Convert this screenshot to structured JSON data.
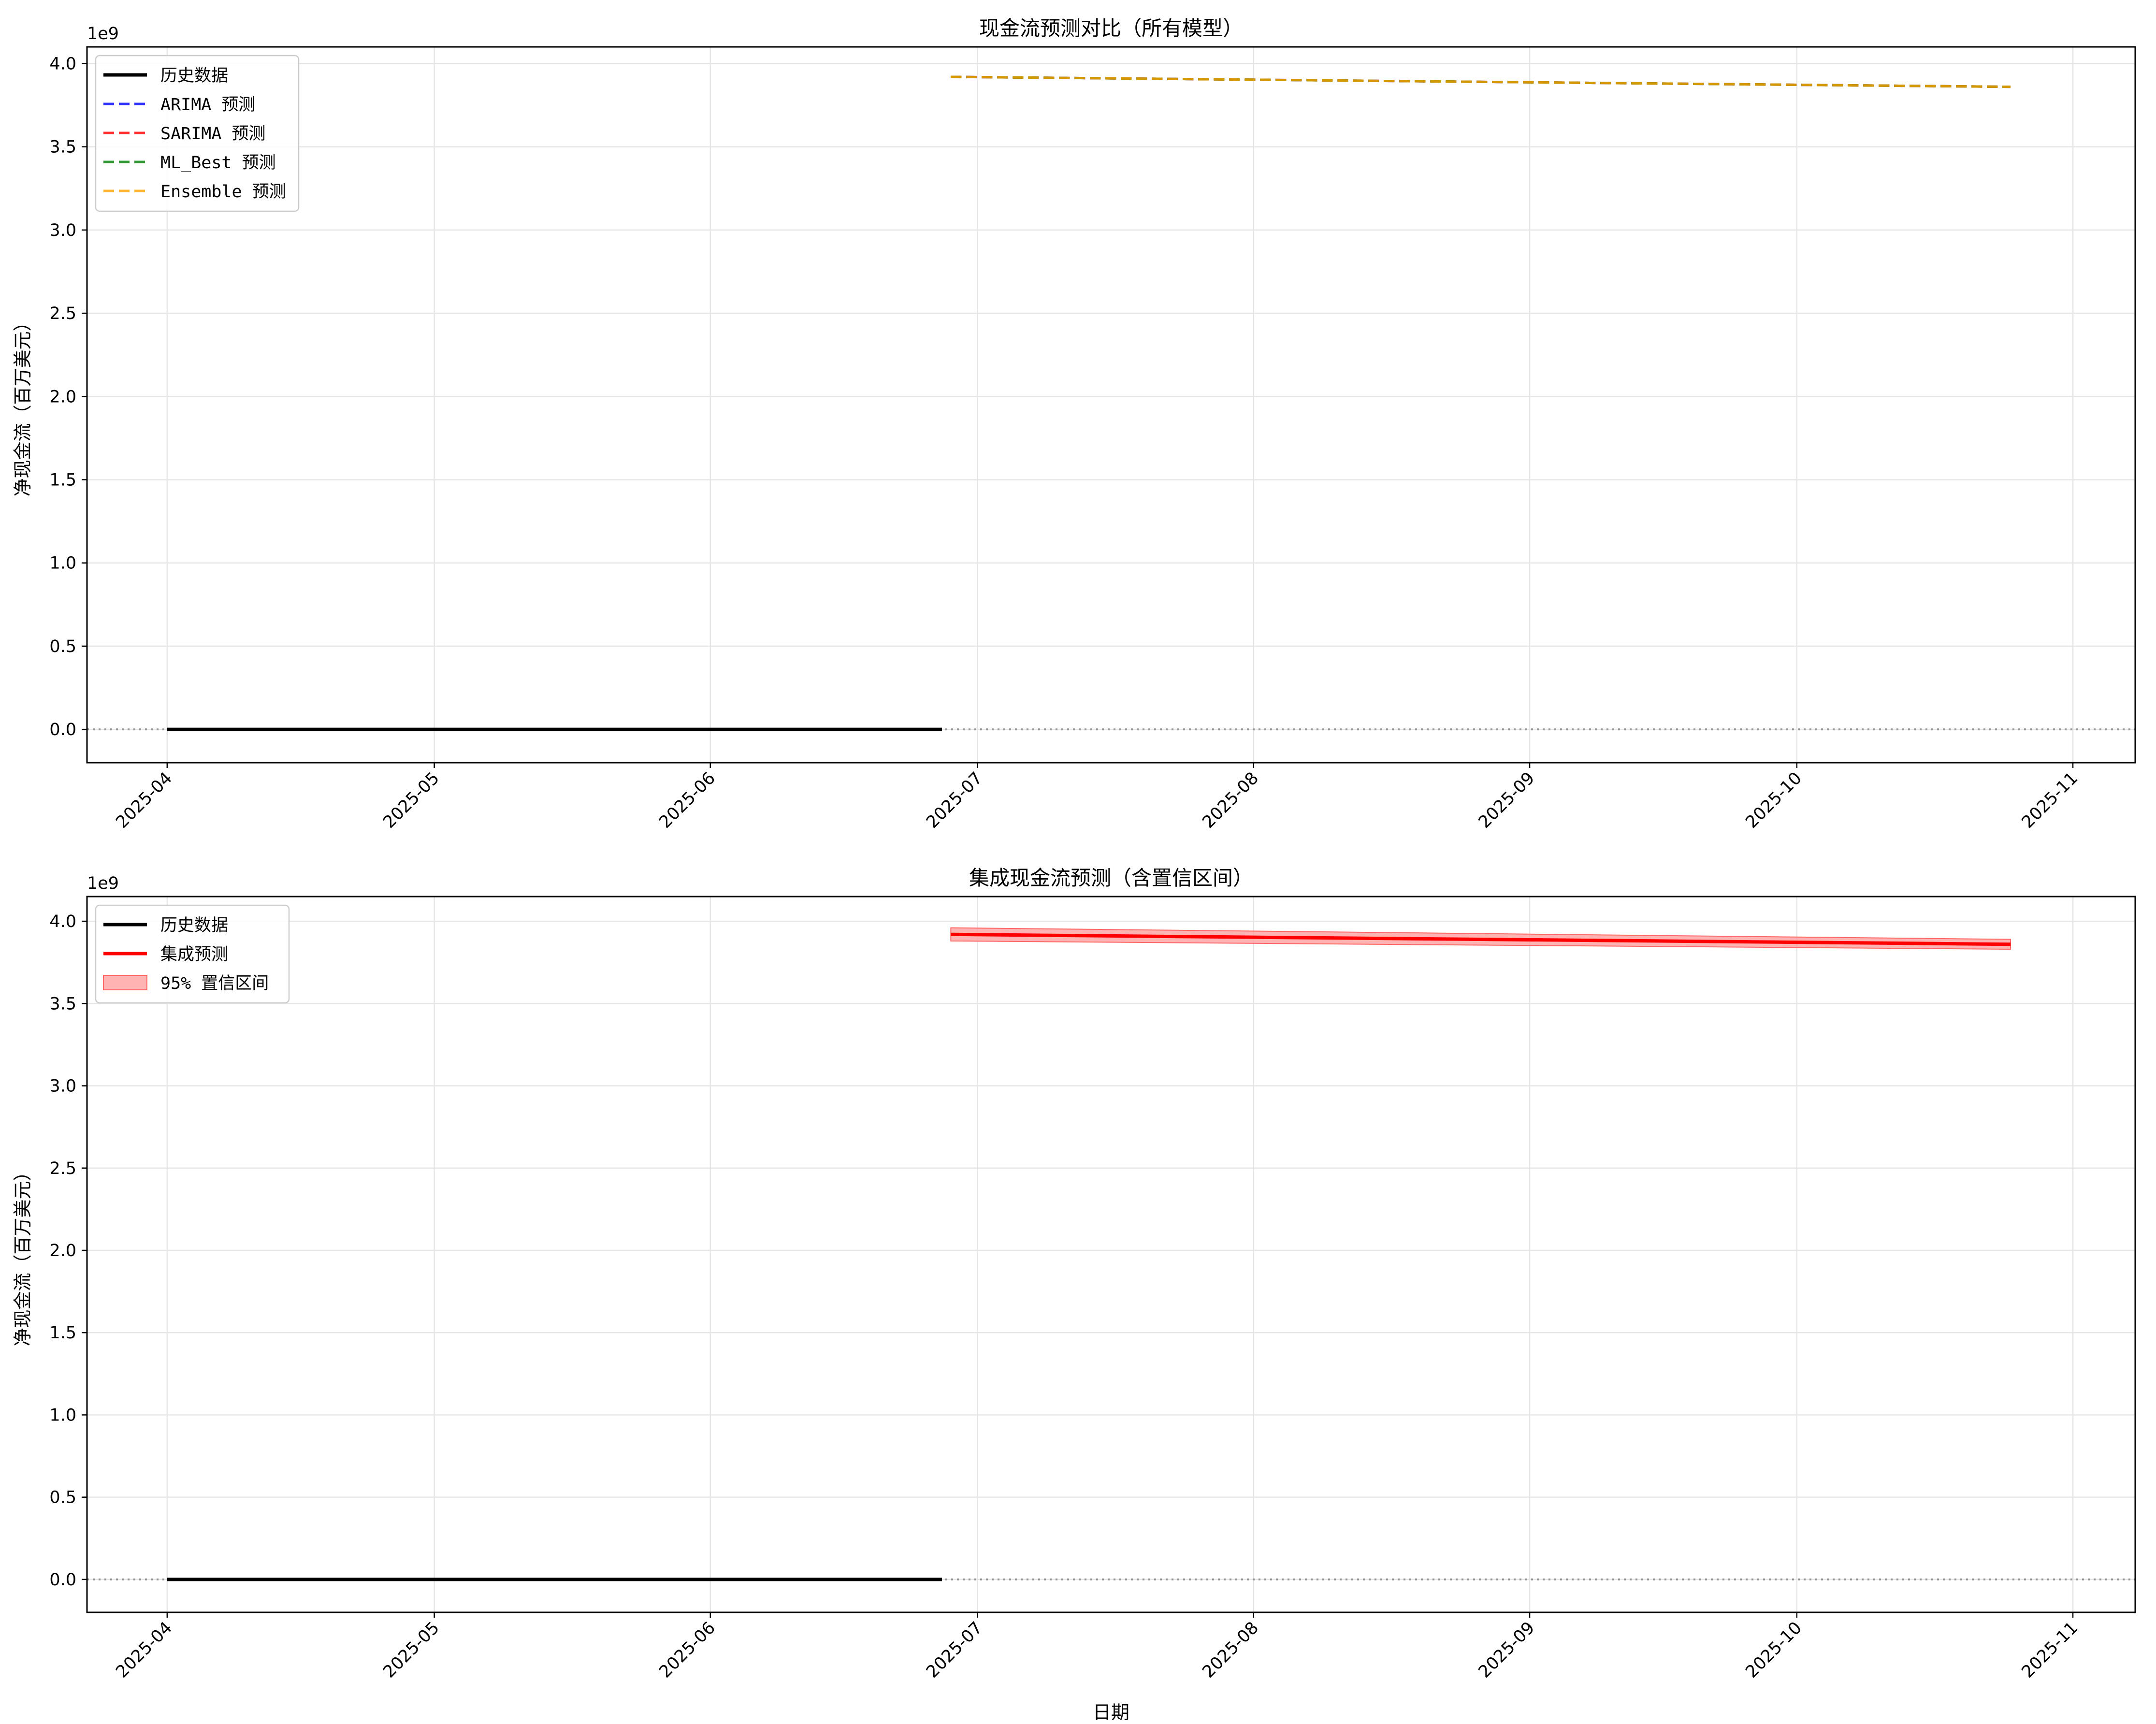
{
  "chart_data": [
    {
      "type": "line",
      "title": "现金流预测对比（所有模型）",
      "xlabel": "",
      "ylabel": "净现金流（百万美元）",
      "y_offset_label": "1e9",
      "ylim": [
        -0.2,
        4.1
      ],
      "yticks": [
        0.0,
        0.5,
        1.0,
        1.5,
        2.0,
        2.5,
        3.0,
        3.5,
        4.0
      ],
      "ytick_labels": [
        "0.0",
        "0.5",
        "1.0",
        "1.5",
        "2.0",
        "2.5",
        "3.0",
        "3.5",
        "4.0"
      ],
      "xlim": [
        "2025-03-23",
        "2025-11-08"
      ],
      "xticks": [
        "2025-04-01",
        "2025-05-01",
        "2025-06-01",
        "2025-07-01",
        "2025-08-01",
        "2025-09-01",
        "2025-10-01",
        "2025-11-01"
      ],
      "xtick_labels": [
        "2025-04",
        "2025-05",
        "2025-06",
        "2025-07",
        "2025-08",
        "2025-09",
        "2025-10",
        "2025-11"
      ],
      "grid": true,
      "zero_line": true,
      "legend_position": "top-left",
      "series": [
        {
          "name": "历史数据",
          "style": "solid",
          "color": "#000000",
          "x": [
            "2025-04-01",
            "2025-06-27"
          ],
          "y": [
            0.0,
            0.0
          ]
        },
        {
          "name": "ARIMA 预测",
          "style": "dashed",
          "color": "#0000ff",
          "x": [
            "2025-06-28",
            "2025-10-25"
          ],
          "y": [
            3.92,
            3.86
          ]
        },
        {
          "name": "SARIMA 预测",
          "style": "dashed",
          "color": "#ff0000",
          "x": [
            "2025-06-28",
            "2025-10-25"
          ],
          "y": [
            3.92,
            3.86
          ]
        },
        {
          "name": "ML_Best 预测",
          "style": "dashed",
          "color": "#008000",
          "x": [
            "2025-06-28",
            "2025-10-25"
          ],
          "y": [
            3.92,
            3.86
          ]
        },
        {
          "name": "Ensemble 预测",
          "style": "dashed",
          "color": "#ffa500",
          "x": [
            "2025-06-28",
            "2025-10-25"
          ],
          "y": [
            3.92,
            3.86
          ]
        }
      ]
    },
    {
      "type": "line",
      "title": "集成现金流预测（含置信区间）",
      "xlabel": "日期",
      "ylabel": "净现金流（百万美元）",
      "y_offset_label": "1e9",
      "ylim": [
        -0.2,
        4.15
      ],
      "yticks": [
        0.0,
        0.5,
        1.0,
        1.5,
        2.0,
        2.5,
        3.0,
        3.5,
        4.0
      ],
      "ytick_labels": [
        "0.0",
        "0.5",
        "1.0",
        "1.5",
        "2.0",
        "2.5",
        "3.0",
        "3.5",
        "4.0"
      ],
      "xlim": [
        "2025-03-23",
        "2025-11-08"
      ],
      "xticks": [
        "2025-04-01",
        "2025-05-01",
        "2025-06-01",
        "2025-07-01",
        "2025-08-01",
        "2025-09-01",
        "2025-10-01",
        "2025-11-01"
      ],
      "xtick_labels": [
        "2025-04",
        "2025-05",
        "2025-06",
        "2025-07",
        "2025-08",
        "2025-09",
        "2025-10",
        "2025-11"
      ],
      "grid": true,
      "zero_line": true,
      "legend_position": "top-left",
      "series": [
        {
          "name": "历史数据",
          "style": "solid",
          "color": "#000000",
          "x": [
            "2025-04-01",
            "2025-06-27"
          ],
          "y": [
            0.0,
            0.0
          ]
        },
        {
          "name": "集成预测",
          "style": "solid",
          "color": "#ff0000",
          "x": [
            "2025-06-28",
            "2025-10-25"
          ],
          "y": [
            3.92,
            3.86
          ]
        }
      ],
      "band": {
        "name": "95% 置信区间",
        "color": "#ff9999",
        "x": [
          "2025-06-28",
          "2025-10-25"
        ],
        "lower": [
          3.88,
          3.83
        ],
        "upper": [
          3.96,
          3.89
        ]
      }
    }
  ]
}
